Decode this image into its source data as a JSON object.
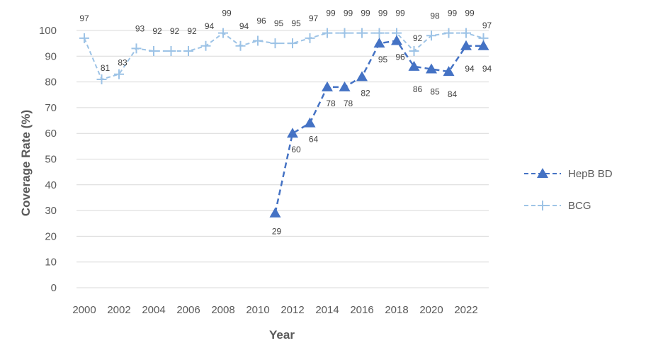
{
  "chart_data": {
    "type": "line",
    "title": "",
    "xlabel": "Year",
    "ylabel": "Coverage Rate (%)",
    "ylim": [
      0,
      100
    ],
    "y_ticks": [
      0,
      10,
      20,
      30,
      40,
      50,
      60,
      70,
      80,
      90,
      100
    ],
    "x_tick_labels": [
      "2000",
      "2002",
      "2004",
      "2006",
      "2008",
      "2010",
      "2012",
      "2014",
      "2016",
      "2018",
      "2020",
      "2022"
    ],
    "grid": true,
    "legend_position": "right",
    "x": [
      2000,
      2001,
      2002,
      2003,
      2004,
      2005,
      2006,
      2007,
      2008,
      2009,
      2010,
      2011,
      2012,
      2013,
      2014,
      2015,
      2016,
      2017,
      2018,
      2019,
      2020,
      2021,
      2022,
      2023
    ],
    "series": [
      {
        "name": "HepB BD",
        "color": "#4472C4",
        "marker": "triangle",
        "line_style": "dashed",
        "values": [
          null,
          null,
          null,
          null,
          null,
          null,
          null,
          null,
          null,
          null,
          null,
          29,
          60,
          64,
          78,
          78,
          82,
          95,
          96,
          86,
          85,
          84,
          94,
          94
        ]
      },
      {
        "name": "BCG",
        "color": "#9DC3E6",
        "marker": "plus",
        "line_style": "dashed",
        "values": [
          97,
          81,
          83,
          93,
          92,
          92,
          92,
          94,
          99,
          94,
          96,
          95,
          95,
          97,
          99,
          99,
          99,
          99,
          99,
          92,
          98,
          99,
          99,
          97
        ]
      }
    ]
  }
}
